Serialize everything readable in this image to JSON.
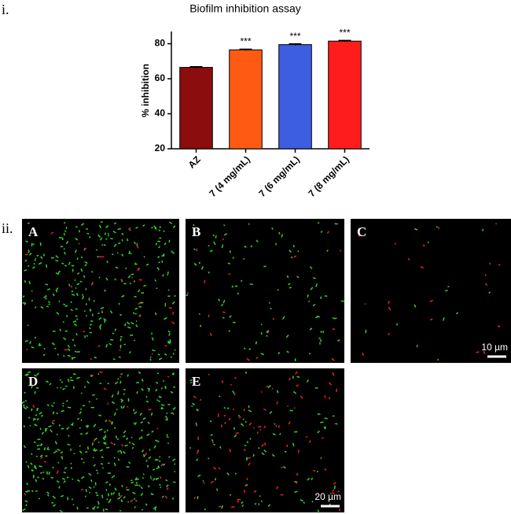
{
  "chart_data": {
    "type": "bar",
    "title": "Biofilm inhibition assay",
    "ylabel": "% inhibition",
    "categories": [
      "AZ",
      "7 (4 mg/mL)",
      "7 (6 mg/mL)",
      "7 (8 mg/mL)"
    ],
    "values": [
      66.5,
      76.5,
      79.5,
      81.5
    ],
    "errors": [
      0.4,
      0.4,
      0.4,
      0.4
    ],
    "annotations": [
      null,
      "***",
      "***",
      "***"
    ],
    "colors": [
      "#8b0d0d",
      "#ff5a14",
      "#3d5ee0",
      "#ff1c1c"
    ],
    "ylim": [
      20,
      87
    ],
    "yticks": [
      20,
      40,
      60,
      80
    ]
  },
  "panel_labels": [
    "i.",
    "ii."
  ],
  "images": [
    {
      "label": "A"
    },
    {
      "label": "B"
    },
    {
      "label": "C",
      "scale_bar": "10 µm"
    },
    {
      "label": "D"
    },
    {
      "label": "E",
      "scale_bar": "20 µm"
    }
  ]
}
